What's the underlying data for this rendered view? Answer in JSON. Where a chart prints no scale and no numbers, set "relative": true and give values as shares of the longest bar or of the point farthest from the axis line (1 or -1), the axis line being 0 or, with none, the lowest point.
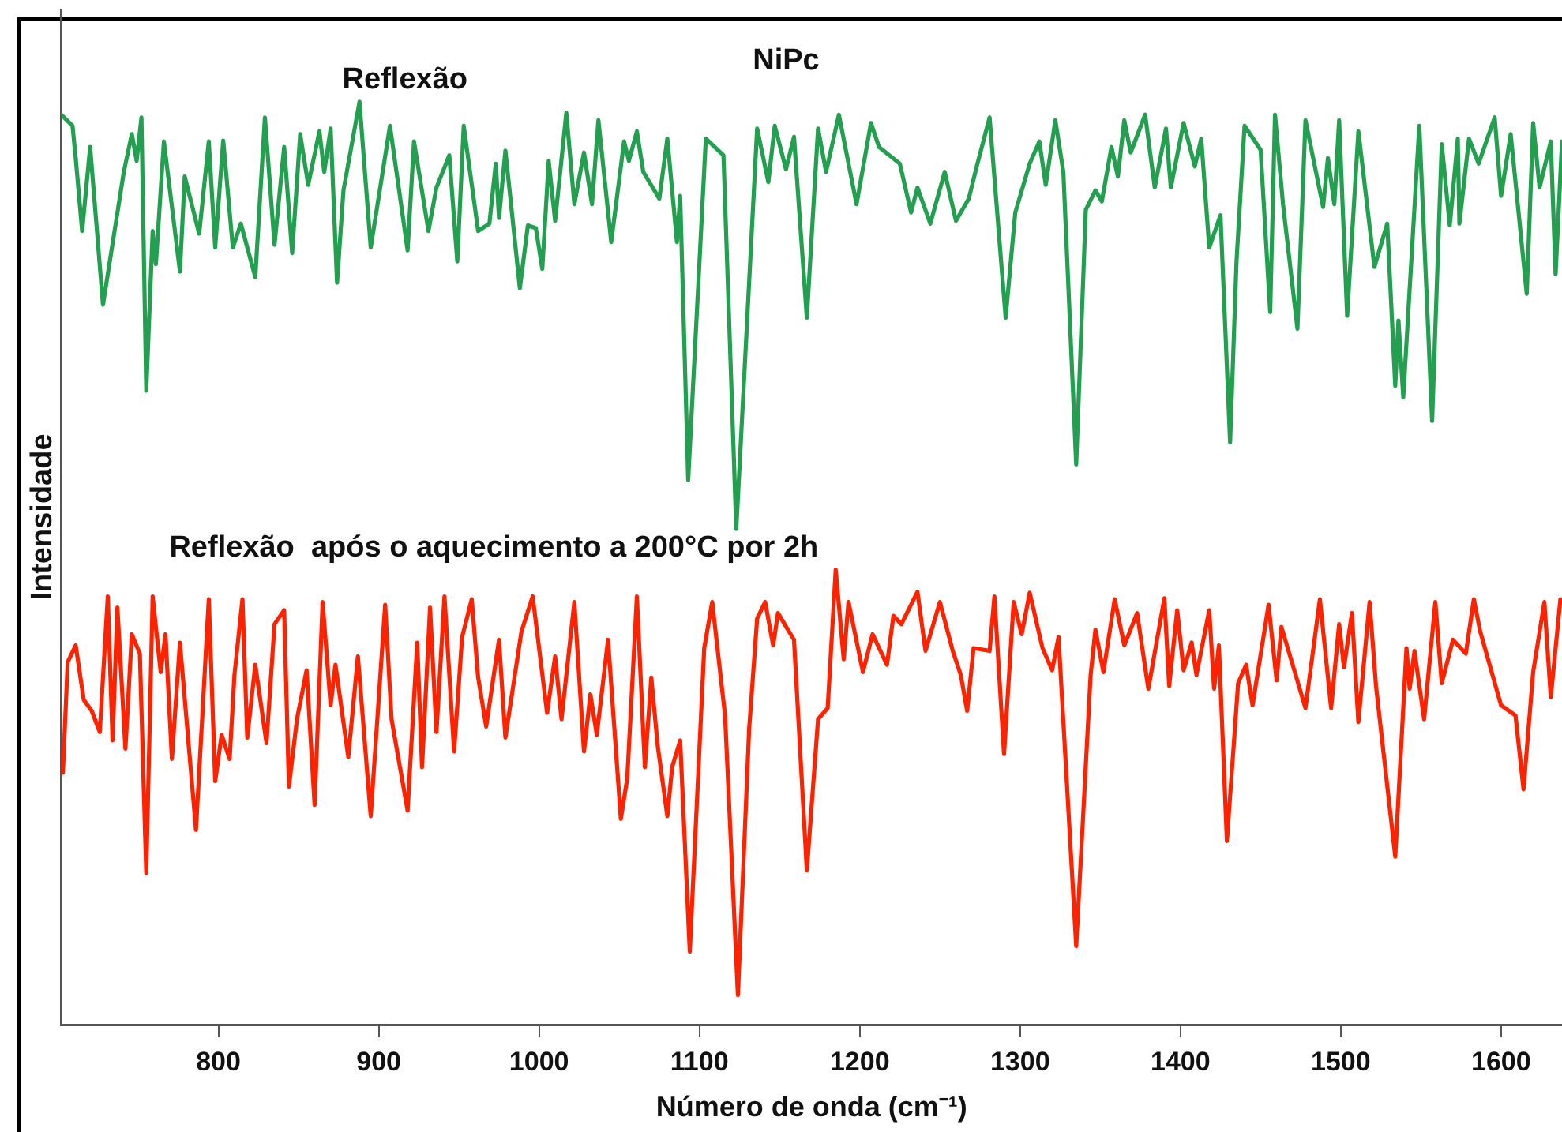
{
  "chart_data": {
    "type": "line",
    "title": "NiPc",
    "xlabel": "Número de onda (cm⁻¹)",
    "ylabel": "Intensidade",
    "relative": true,
    "xlim": [
      702,
      1638
    ],
    "xticks": [
      800,
      900,
      1000,
      1100,
      1200,
      1300,
      1400,
      1500,
      1600
    ],
    "grid": false,
    "legend": false,
    "marker": "none",
    "line_style": "solid",
    "series": [
      {
        "name": "Reflexão",
        "color": "#22a050",
        "x": [
          702,
          709,
          711,
          715,
          720,
          728,
          741,
          746,
          749,
          752,
          755,
          759,
          761,
          766,
          776,
          779,
          788,
          794,
          798,
          803,
          809,
          814,
          823,
          829,
          835,
          841,
          846,
          851,
          856,
          863,
          866,
          870,
          874,
          878,
          888,
          895,
          907,
          918,
          922,
          931,
          936,
          944,
          949,
          953,
          962,
          969,
          973,
          975,
          979,
          988,
          993,
          998,
          1002,
          1006,
          1010,
          1017,
          1022,
          1028,
          1033,
          1037,
          1045,
          1053,
          1056,
          1061,
          1065,
          1075,
          1080,
          1086,
          1088,
          1093,
          1104,
          1115,
          1123,
          1136,
          1143,
          1147,
          1154,
          1159,
          1167,
          1174,
          1179,
          1187,
          1198,
          1207,
          1212,
          1225,
          1232,
          1236,
          1244,
          1253,
          1260,
          1268,
          1273,
          1281,
          1291,
          1297,
          1306,
          1312,
          1316,
          1322,
          1327,
          1335,
          1341,
          1347,
          1351,
          1357,
          1361,
          1365,
          1369,
          1378,
          1384,
          1391,
          1394,
          1402,
          1409,
          1413,
          1418,
          1425,
          1431,
          1435,
          1440,
          1450,
          1456,
          1459,
          1464,
          1473,
          1478,
          1489,
          1492,
          1496,
          1499,
          1504,
          1511,
          1521,
          1529,
          1534,
          1536,
          1539,
          1549,
          1557,
          1563,
          1568,
          1573,
          1574,
          1580,
          1586,
          1596,
          1600,
          1606,
          1616,
          1620,
          1624,
          1631,
          1634,
          1638
        ],
        "values": [
          0.986,
          0.974,
          0.939,
          0.86,
          0.951,
          0.78,
          0.924,
          0.965,
          0.936,
          0.983,
          0.687,
          0.86,
          0.824,
          0.957,
          0.816,
          0.919,
          0.857,
          0.957,
          0.842,
          0.958,
          0.842,
          0.868,
          0.81,
          0.983,
          0.845,
          0.951,
          0.836,
          0.965,
          0.91,
          0.968,
          0.924,
          0.971,
          0.804,
          0.904,
          1,
          0.842,
          0.974,
          0.839,
          0.957,
          0.86,
          0.907,
          0.942,
          0.827,
          0.974,
          0.86,
          0.868,
          0.933,
          0.874,
          0.947,
          0.798,
          0.866,
          0.863,
          0.819,
          0.936,
          0.871,
          0.988,
          0.889,
          0.945,
          0.889,
          0.98,
          0.848,
          0.957,
          0.936,
          0.968,
          0.924,
          0.895,
          0.96,
          0.848,
          0.898,
          0.59,
          0.96,
          0.942,
          0.537,
          0.971,
          0.913,
          0.974,
          0.927,
          0.962,
          0.766,
          0.971,
          0.924,
          0.986,
          0.889,
          0.977,
          0.951,
          0.933,
          0.88,
          0.907,
          0.868,
          0.924,
          0.871,
          0.895,
          0.93,
          0.983,
          0.766,
          0.88,
          0.933,
          0.957,
          0.91,
          0.98,
          0.924,
          0.607,
          0.883,
          0.904,
          0.892,
          0.951,
          0.919,
          0.98,
          0.945,
          0.986,
          0.907,
          0.971,
          0.907,
          0.977,
          0.93,
          0.96,
          0.842,
          0.877,
          0.631,
          0.827,
          0.974,
          0.948,
          0.772,
          0.986,
          0.889,
          0.754,
          0.98,
          0.886,
          0.939,
          0.889,
          0.98,
          0.768,
          0.968,
          0.821,
          0.868,
          0.692,
          0.763,
          0.68,
          0.974,
          0.654,
          0.954,
          0.866,
          0.96,
          0.868,
          0.96,
          0.933,
          0.983,
          0.898,
          0.965,
          0.792,
          0.977,
          0.907,
          0.957,
          0.813,
          0.957
        ]
      },
      {
        "name": "Reflexão  após o aquecimento a 200°C por 2h",
        "color": "#ff2200",
        "x": [
          703,
          706,
          711,
          716,
          721,
          726,
          731,
          734,
          737,
          742,
          746,
          751,
          755,
          759,
          764,
          767,
          771,
          776,
          786,
          794,
          798,
          802,
          807,
          810,
          815,
          818,
          823,
          830,
          835,
          841,
          844,
          849,
          855,
          860,
          865,
          870,
          873,
          881,
          887,
          895,
          904,
          908,
          918,
          924,
          927,
          932,
          936,
          941,
          947,
          952,
          958,
          962,
          967,
          975,
          979,
          989,
          996,
          1005,
          1010,
          1014,
          1022,
          1028,
          1032,
          1036,
          1043,
          1051,
          1055,
          1061,
          1066,
          1070,
          1074,
          1080,
          1083,
          1088,
          1094,
          1103,
          1108,
          1116,
          1124,
          1131,
          1136,
          1141,
          1146,
          1149,
          1159,
          1167,
          1174,
          1180,
          1185,
          1190,
          1193,
          1202,
          1208,
          1217,
          1221,
          1226,
          1236,
          1241,
          1250,
          1258,
          1263,
          1267,
          1271,
          1281,
          1284,
          1290,
          1296,
          1301,
          1306,
          1314,
          1320,
          1324,
          1335,
          1344,
          1347,
          1352,
          1359,
          1365,
          1373,
          1380,
          1390,
          1393,
          1398,
          1402,
          1407,
          1410,
          1418,
          1421,
          1424,
          1429,
          1436,
          1441,
          1445,
          1455,
          1460,
          1463,
          1478,
          1487,
          1494,
          1499,
          1502,
          1507,
          1511,
          1518,
          1522,
          1534,
          1541,
          1543,
          1546,
          1552,
          1559,
          1563,
          1570,
          1578,
          1583,
          1587,
          1600,
          1609,
          1614,
          1620,
          1627,
          1631,
          1637
        ],
        "values": [
          0.273,
          0.393,
          0.411,
          0.352,
          0.34,
          0.317,
          0.464,
          0.308,
          0.452,
          0.299,
          0.423,
          0.402,
          0.164,
          0.464,
          0.382,
          0.423,
          0.288,
          0.414,
          0.211,
          0.461,
          0.264,
          0.314,
          0.288,
          0.379,
          0.461,
          0.311,
          0.39,
          0.305,
          0.434,
          0.449,
          0.258,
          0.331,
          0.384,
          0.238,
          0.458,
          0.346,
          0.39,
          0.29,
          0.399,
          0.226,
          0.455,
          0.331,
          0.232,
          0.414,
          0.279,
          0.452,
          0.317,
          0.464,
          0.296,
          0.42,
          0.461,
          0.376,
          0.323,
          0.417,
          0.311,
          0.426,
          0.464,
          0.338,
          0.399,
          0.331,
          0.458,
          0.296,
          0.358,
          0.314,
          0.417,
          0.223,
          0.267,
          0.464,
          0.279,
          0.376,
          0.302,
          0.226,
          0.279,
          0.308,
          0.079,
          0.408,
          0.458,
          0.335,
          0.032,
          0.32,
          0.44,
          0.458,
          0.411,
          0.446,
          0.417,
          0.167,
          0.331,
          0.343,
          0.493,
          0.396,
          0.458,
          0.382,
          0.423,
          0.39,
          0.443,
          0.434,
          0.469,
          0.405,
          0.458,
          0.405,
          0.379,
          0.34,
          0.408,
          0.405,
          0.464,
          0.293,
          0.458,
          0.423,
          0.468,
          0.408,
          0.384,
          0.42,
          0.085,
          0.379,
          0.428,
          0.382,
          0.461,
          0.411,
          0.446,
          0.364,
          0.462,
          0.367,
          0.449,
          0.384,
          0.414,
          0.379,
          0.449,
          0.364,
          0.411,
          0.199,
          0.37,
          0.39,
          0.346,
          0.455,
          0.373,
          0.431,
          0.343,
          0.461,
          0.343,
          0.434,
          0.387,
          0.446,
          0.328,
          0.458,
          0.367,
          0.182,
          0.408,
          0.364,
          0.405,
          0.331,
          0.458,
          0.37,
          0.417,
          0.402,
          0.461,
          0.426,
          0.346,
          0.335,
          0.255,
          0.382,
          0.458,
          0.355,
          0.461
        ]
      }
    ]
  }
}
